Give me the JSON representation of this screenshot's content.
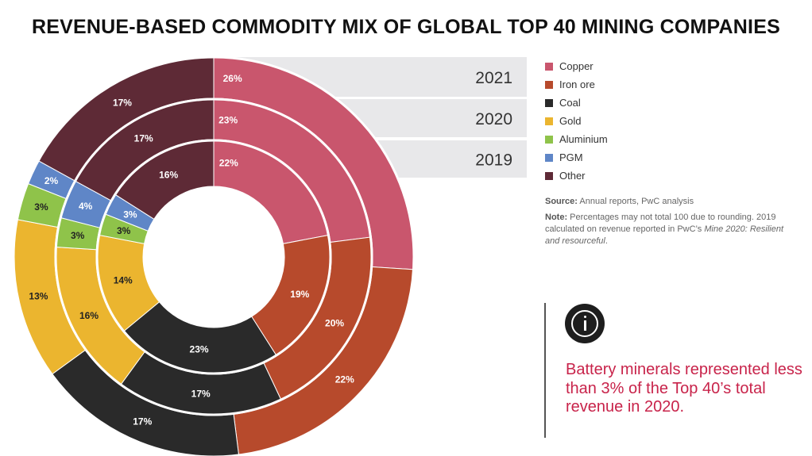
{
  "title": "REVENUE-BASED COMMODITY MIX OF GLOBAL TOP 40 MINING COMPANIES",
  "chart_data": {
    "type": "pie",
    "subtype": "multi-ring donut",
    "categories": [
      "Copper",
      "Iron ore",
      "Coal",
      "Gold",
      "Aluminium",
      "PGM",
      "Other"
    ],
    "colors": [
      "#c9566d",
      "#b74a2c",
      "#2a2a2a",
      "#ebb52f",
      "#8fc34a",
      "#5f86c7",
      "#5e2a36"
    ],
    "series": [
      {
        "name": "2021",
        "values": [
          26,
          22,
          17,
          13,
          3,
          2,
          17
        ],
        "labels": [
          "26%",
          "22%",
          "17%",
          "13%",
          "3%",
          "2%",
          "17%"
        ]
      },
      {
        "name": "2020",
        "values": [
          23,
          20,
          17,
          16,
          3,
          4,
          17
        ],
        "labels": [
          "23%",
          "20%",
          "17%",
          "16%",
          "3%",
          "4%",
          "17%"
        ]
      },
      {
        "name": "2019",
        "values": [
          22,
          19,
          23,
          14,
          3,
          3,
          16
        ],
        "labels": [
          "22%",
          "19%",
          "23%",
          "14%",
          "3%",
          "3%",
          "16%"
        ]
      }
    ],
    "label_text_colors": [
      "#ffffff",
      "#ffffff",
      "#ffffff",
      "#222222",
      "#222222",
      "#ffffff",
      "#ffffff"
    ],
    "band_color": "#e8e8ea"
  },
  "legend": [
    {
      "label": "Copper",
      "color": "#c9566d"
    },
    {
      "label": "Iron ore",
      "color": "#b74a2c"
    },
    {
      "label": "Coal",
      "color": "#2a2a2a"
    },
    {
      "label": "Gold",
      "color": "#ebb52f"
    },
    {
      "label": "Aluminium",
      "color": "#8fc34a"
    },
    {
      "label": "PGM",
      "color": "#5f86c7"
    },
    {
      "label": "Other",
      "color": "#5e2a36"
    }
  ],
  "source": {
    "label": "Source:",
    "text": " Annual reports, PwC analysis"
  },
  "note": {
    "label": "Note:",
    "text1": " Percentages may not total 100 due to rounding. 2019 calculated on revenue reported in PwC’s ",
    "italic": "Mine 2020: Resilient and resourceful",
    "text2": "."
  },
  "callout": {
    "icon": "info-icon",
    "text": "Battery minerals represented less than 3% of the Top 40’s total revenue in 2020."
  }
}
